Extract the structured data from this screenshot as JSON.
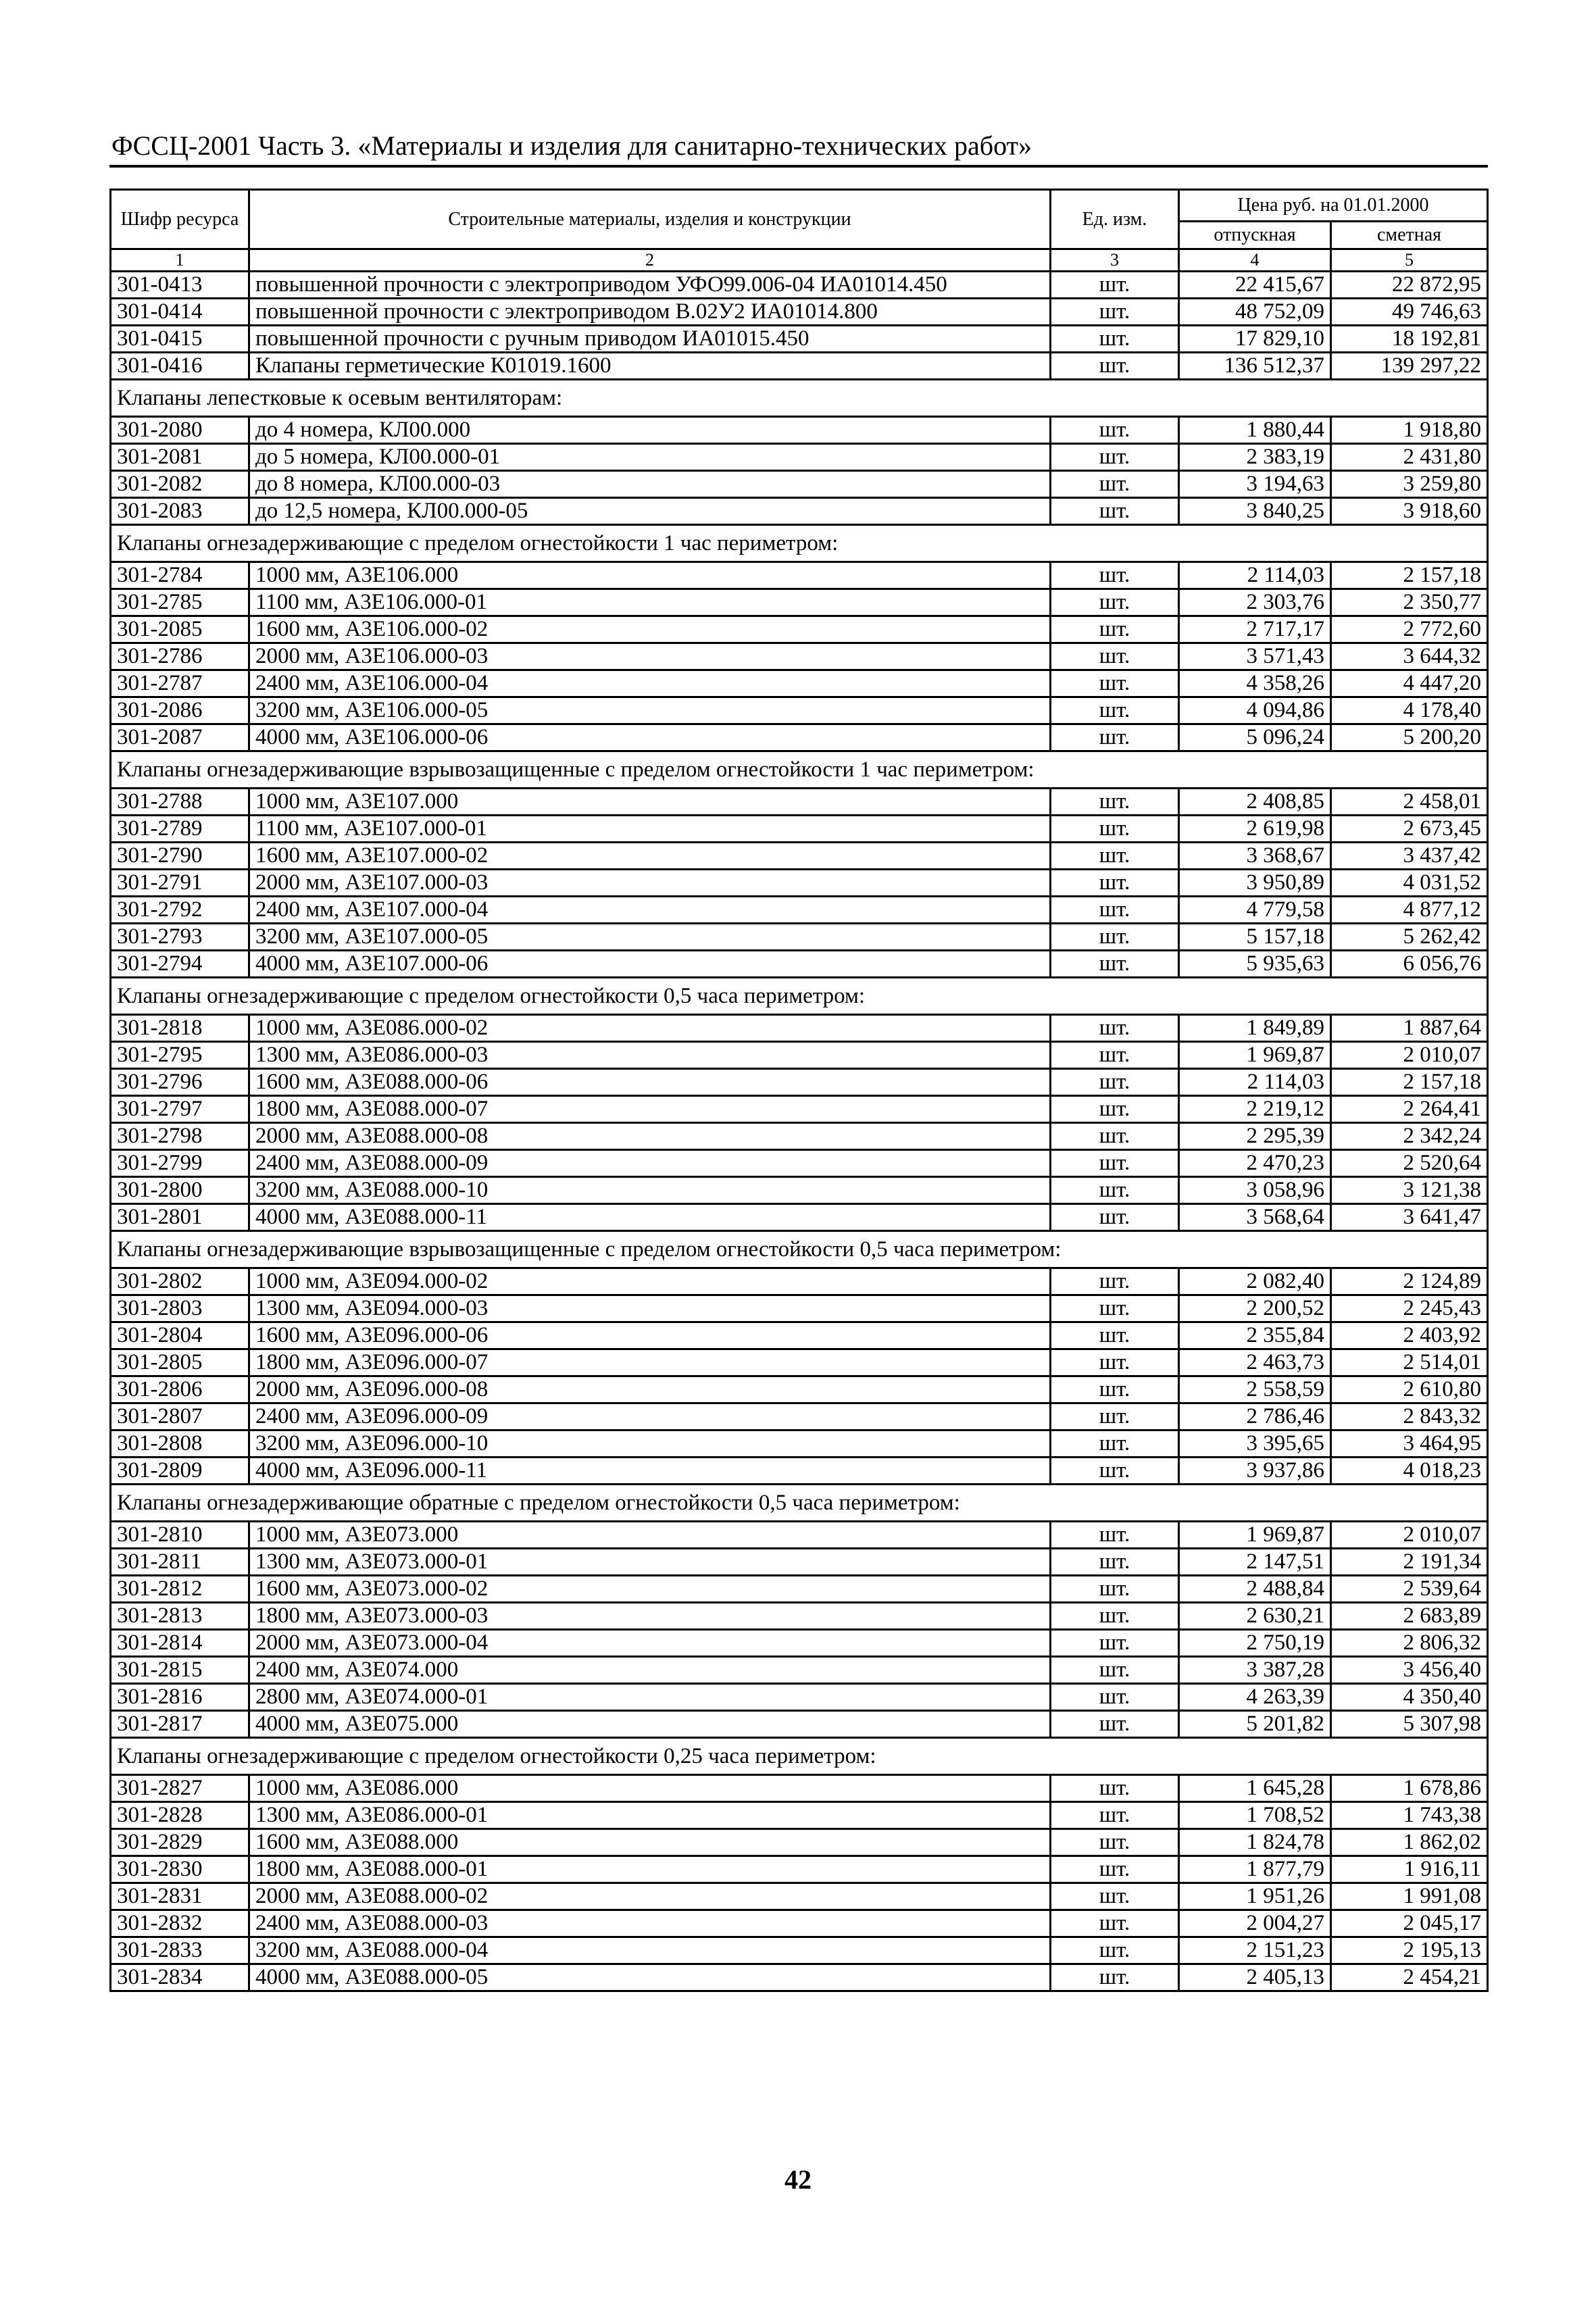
{
  "header": {
    "title": "ФССЦ-2001 Часть 3. «Материалы и изделия для санитарно-технических работ»"
  },
  "table": {
    "columns": {
      "code": "Шифр ресурса",
      "name": "Строительные материалы, изделия и конструкции",
      "unit": "Ед. изм.",
      "price_group": "Цена руб. на 01.01.2000",
      "release": "отпускная",
      "estimate": "сметная"
    },
    "column_numbers": [
      "1",
      "2",
      "3",
      "4",
      "5"
    ],
    "groups": [
      {
        "title": "",
        "rows": [
          {
            "code": "301-0413",
            "name": "повышенной прочности с электроприводом УФО99.006-04 ИА01014.450",
            "indent": true,
            "unit": "шт.",
            "release": "22 415,67",
            "estimate": "22 872,95"
          },
          {
            "code": "301-0414",
            "name": "повышенной прочности с электроприводом В.02У2 ИА01014.800",
            "indent": true,
            "unit": "шт.",
            "release": "48 752,09",
            "estimate": "49 746,63"
          },
          {
            "code": "301-0415",
            "name": "повышенной прочности с ручным приводом ИА01015.450",
            "indent": true,
            "unit": "шт.",
            "release": "17 829,10",
            "estimate": "18 192,81"
          },
          {
            "code": "301-0416",
            "name": "Клапаны герметические К01019.1600",
            "indent": false,
            "unit": "шт.",
            "release": "136 512,37",
            "estimate": "139 297,22"
          }
        ]
      },
      {
        "title": "Клапаны лепестковые к осевым вентиляторам:",
        "rows": [
          {
            "code": "301-2080",
            "name": "до 4 номера, КЛ00.000",
            "indent": true,
            "unit": "шт.",
            "release": "1 880,44",
            "estimate": "1 918,80"
          },
          {
            "code": "301-2081",
            "name": "до 5 номера, КЛ00.000-01",
            "indent": true,
            "unit": "шт.",
            "release": "2 383,19",
            "estimate": "2 431,80"
          },
          {
            "code": "301-2082",
            "name": "до 8 номера, КЛ00.000-03",
            "indent": true,
            "unit": "шт.",
            "release": "3 194,63",
            "estimate": "3 259,80"
          },
          {
            "code": "301-2083",
            "name": "до 12,5 номера, КЛ00.000-05",
            "indent": true,
            "unit": "шт.",
            "release": "3 840,25",
            "estimate": "3 918,60"
          }
        ]
      },
      {
        "title": "Клапаны огнезадерживающие с пределом огнестойкости 1 час периметром:",
        "rows": [
          {
            "code": "301-2784",
            "name": "1000 мм, А3Е106.000",
            "indent": true,
            "unit": "шт.",
            "release": "2 114,03",
            "estimate": "2 157,18"
          },
          {
            "code": "301-2785",
            "name": "1100 мм, А3Е106.000-01",
            "indent": true,
            "unit": "шт.",
            "release": "2 303,76",
            "estimate": "2 350,77"
          },
          {
            "code": "301-2085",
            "name": "1600 мм, А3Е106.000-02",
            "indent": true,
            "unit": "шт.",
            "release": "2 717,17",
            "estimate": "2 772,60"
          },
          {
            "code": "301-2786",
            "name": "2000 мм, А3Е106.000-03",
            "indent": true,
            "unit": "шт.",
            "release": "3 571,43",
            "estimate": "3 644,32"
          },
          {
            "code": "301-2787",
            "name": "2400 мм, А3Е106.000-04",
            "indent": true,
            "unit": "шт.",
            "release": "4 358,26",
            "estimate": "4 447,20"
          },
          {
            "code": "301-2086",
            "name": "3200 мм, А3Е106.000-05",
            "indent": true,
            "unit": "шт.",
            "release": "4 094,86",
            "estimate": "4 178,40"
          },
          {
            "code": "301-2087",
            "name": "4000 мм, А3Е106.000-06",
            "indent": true,
            "unit": "шт.",
            "release": "5 096,24",
            "estimate": "5 200,20"
          }
        ]
      },
      {
        "title": "Клапаны огнезадерживающие взрывозащищенные с пределом огнестойкости 1 час периметром:",
        "rows": [
          {
            "code": "301-2788",
            "name": "1000 мм, А3Е107.000",
            "indent": true,
            "unit": "шт.",
            "release": "2 408,85",
            "estimate": "2 458,01"
          },
          {
            "code": "301-2789",
            "name": "1100 мм, А3Е107.000-01",
            "indent": true,
            "unit": "шт.",
            "release": "2 619,98",
            "estimate": "2 673,45"
          },
          {
            "code": "301-2790",
            "name": "1600 мм, А3Е107.000-02",
            "indent": true,
            "unit": "шт.",
            "release": "3 368,67",
            "estimate": "3 437,42"
          },
          {
            "code": "301-2791",
            "name": "2000 мм, А3Е107.000-03",
            "indent": true,
            "unit": "шт.",
            "release": "3 950,89",
            "estimate": "4 031,52"
          },
          {
            "code": "301-2792",
            "name": "2400 мм, А3Е107.000-04",
            "indent": true,
            "unit": "шт.",
            "release": "4 779,58",
            "estimate": "4 877,12"
          },
          {
            "code": "301-2793",
            "name": "3200 мм, А3Е107.000-05",
            "indent": true,
            "unit": "шт.",
            "release": "5 157,18",
            "estimate": "5 262,42"
          },
          {
            "code": "301-2794",
            "name": "4000 мм, А3Е107.000-06",
            "indent": true,
            "unit": "шт.",
            "release": "5 935,63",
            "estimate": "6 056,76"
          }
        ]
      },
      {
        "title": "Клапаны огнезадерживающие с пределом огнестойкости 0,5 часа периметром:",
        "rows": [
          {
            "code": "301-2818",
            "name": "1000 мм, А3Е086.000-02",
            "indent": true,
            "unit": "шт.",
            "release": "1 849,89",
            "estimate": "1 887,64"
          },
          {
            "code": "301-2795",
            "name": "1300 мм, А3Е086.000-03",
            "indent": true,
            "unit": "шт.",
            "release": "1 969,87",
            "estimate": "2 010,07"
          },
          {
            "code": "301-2796",
            "name": "1600 мм, А3Е088.000-06",
            "indent": true,
            "unit": "шт.",
            "release": "2 114,03",
            "estimate": "2 157,18"
          },
          {
            "code": "301-2797",
            "name": "1800 мм, А3Е088.000-07",
            "indent": true,
            "unit": "шт.",
            "release": "2 219,12",
            "estimate": "2 264,41"
          },
          {
            "code": "301-2798",
            "name": "2000 мм, А3Е088.000-08",
            "indent": true,
            "unit": "шт.",
            "release": "2 295,39",
            "estimate": "2 342,24"
          },
          {
            "code": "301-2799",
            "name": "2400 мм, А3Е088.000-09",
            "indent": true,
            "unit": "шт.",
            "release": "2 470,23",
            "estimate": "2 520,64"
          },
          {
            "code": "301-2800",
            "name": "3200 мм, А3Е088.000-10",
            "indent": true,
            "unit": "шт.",
            "release": "3 058,96",
            "estimate": "3 121,38"
          },
          {
            "code": "301-2801",
            "name": "4000 мм, А3Е088.000-11",
            "indent": true,
            "unit": "шт.",
            "release": "3 568,64",
            "estimate": "3 641,47"
          }
        ]
      },
      {
        "title": "Клапаны огнезадерживающие взрывозащищенные с пределом огнестойкости 0,5 часа периметром:",
        "rows": [
          {
            "code": "301-2802",
            "name": "1000 мм, А3Е094.000-02",
            "indent": true,
            "unit": "шт.",
            "release": "2 082,40",
            "estimate": "2 124,89"
          },
          {
            "code": "301-2803",
            "name": "1300 мм, А3Е094.000-03",
            "indent": true,
            "unit": "шт.",
            "release": "2 200,52",
            "estimate": "2 245,43"
          },
          {
            "code": "301-2804",
            "name": "1600 мм, А3Е096.000-06",
            "indent": true,
            "unit": "шт.",
            "release": "2 355,84",
            "estimate": "2 403,92"
          },
          {
            "code": "301-2805",
            "name": "1800 мм, А3Е096.000-07",
            "indent": true,
            "unit": "шт.",
            "release": "2 463,73",
            "estimate": "2 514,01"
          },
          {
            "code": "301-2806",
            "name": "2000 мм, А3Е096.000-08",
            "indent": true,
            "unit": "шт.",
            "release": "2 558,59",
            "estimate": "2 610,80"
          },
          {
            "code": "301-2807",
            "name": "2400 мм, А3Е096.000-09",
            "indent": true,
            "unit": "шт.",
            "release": "2 786,46",
            "estimate": "2 843,32"
          },
          {
            "code": "301-2808",
            "name": "3200 мм, А3Е096.000-10",
            "indent": true,
            "unit": "шт.",
            "release": "3 395,65",
            "estimate": "3 464,95"
          },
          {
            "code": "301-2809",
            "name": "4000 мм, А3Е096.000-11",
            "indent": true,
            "unit": "шт.",
            "release": "3 937,86",
            "estimate": "4 018,23"
          }
        ]
      },
      {
        "title": "Клапаны огнезадерживающие обратные с пределом огнестойкости 0,5 часа периметром:",
        "rows": [
          {
            "code": "301-2810",
            "name": "1000 мм, А3Е073.000",
            "indent": true,
            "unit": "шт.",
            "release": "1 969,87",
            "estimate": "2 010,07"
          },
          {
            "code": "301-2811",
            "name": "1300 мм, А3Е073.000-01",
            "indent": true,
            "unit": "шт.",
            "release": "2 147,51",
            "estimate": "2 191,34"
          },
          {
            "code": "301-2812",
            "name": "1600 мм, А3Е073.000-02",
            "indent": true,
            "unit": "шт.",
            "release": "2 488,84",
            "estimate": "2 539,64"
          },
          {
            "code": "301-2813",
            "name": "1800 мм, А3Е073.000-03",
            "indent": true,
            "unit": "шт.",
            "release": "2 630,21",
            "estimate": "2 683,89"
          },
          {
            "code": "301-2814",
            "name": "2000 мм, А3Е073.000-04",
            "indent": true,
            "unit": "шт.",
            "release": "2 750,19",
            "estimate": "2 806,32"
          },
          {
            "code": "301-2815",
            "name": "2400 мм, А3Е074.000",
            "indent": true,
            "unit": "шт.",
            "release": "3 387,28",
            "estimate": "3 456,40"
          },
          {
            "code": "301-2816",
            "name": "2800 мм, А3Е074.000-01",
            "indent": true,
            "unit": "шт.",
            "release": "4 263,39",
            "estimate": "4 350,40"
          },
          {
            "code": "301-2817",
            "name": "4000 мм, А3Е075.000",
            "indent": true,
            "unit": "шт.",
            "release": "5 201,82",
            "estimate": "5 307,98"
          }
        ]
      },
      {
        "title": "Клапаны огнезадерживающие с пределом огнестойкости 0,25 часа периметром:",
        "rows": [
          {
            "code": "301-2827",
            "name": "1000 мм, А3Е086.000",
            "indent": true,
            "unit": "шт.",
            "release": "1 645,28",
            "estimate": "1 678,86"
          },
          {
            "code": "301-2828",
            "name": "1300 мм, А3Е086.000-01",
            "indent": true,
            "unit": "шт.",
            "release": "1 708,52",
            "estimate": "1 743,38"
          },
          {
            "code": "301-2829",
            "name": "1600 мм, А3Е088.000",
            "indent": true,
            "unit": "шт.",
            "release": "1 824,78",
            "estimate": "1 862,02"
          },
          {
            "code": "301-2830",
            "name": "1800 мм, А3Е088.000-01",
            "indent": true,
            "unit": "шт.",
            "release": "1 877,79",
            "estimate": "1 916,11"
          },
          {
            "code": "301-2831",
            "name": "2000 мм, А3Е088.000-02",
            "indent": true,
            "unit": "шт.",
            "release": "1 951,26",
            "estimate": "1 991,08"
          },
          {
            "code": "301-2832",
            "name": "2400 мм, А3Е088.000-03",
            "indent": true,
            "unit": "шт.",
            "release": "2 004,27",
            "estimate": "2 045,17"
          },
          {
            "code": "301-2833",
            "name": "3200 мм, А3Е088.000-04",
            "indent": true,
            "unit": "шт.",
            "release": "2 151,23",
            "estimate": "2 195,13"
          },
          {
            "code": "301-2834",
            "name": "4000 мм, А3Е088.000-05",
            "indent": true,
            "unit": "шт.",
            "release": "2 405,13",
            "estimate": "2 454,21"
          }
        ]
      }
    ]
  },
  "footer": {
    "page_number": "42"
  }
}
